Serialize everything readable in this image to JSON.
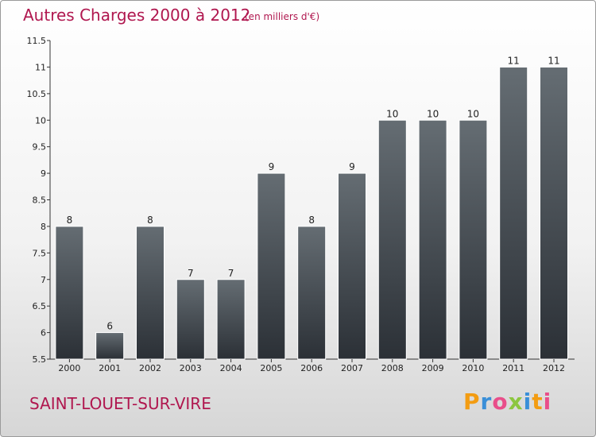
{
  "header": {
    "title": "Autres Charges 2000 à 2012",
    "subtitle": "(en milliers d'€)"
  },
  "footer": {
    "commune": "SAINT-LOUET-SUR-VIRE",
    "logo_letters": [
      "P",
      "r",
      "o",
      "x",
      "i",
      "t",
      "i"
    ],
    "logo_colors": [
      "#f39c12",
      "#3a8fd8",
      "#e94e8a",
      "#8cc63f",
      "#3a8fd8",
      "#f39c12",
      "#e94e8a"
    ]
  },
  "chart_data": {
    "type": "bar",
    "title": "Autres Charges 2000 à 2012",
    "subtitle": "(en milliers d'€)",
    "categories": [
      "2000",
      "2001",
      "2002",
      "2003",
      "2004",
      "2005",
      "2006",
      "2007",
      "2008",
      "2009",
      "2010",
      "2011",
      "2012"
    ],
    "values": [
      8,
      6,
      8,
      7,
      7,
      9,
      8,
      9,
      10,
      10,
      10,
      11,
      11
    ],
    "value_labels": [
      "8",
      "6",
      "8",
      "7",
      "7",
      "9",
      "8",
      "9",
      "10",
      "10",
      "10",
      "11",
      "11"
    ],
    "ylim": [
      5.5,
      11.5
    ],
    "yticks": [
      5.5,
      6,
      6.5,
      7,
      7.5,
      8,
      8.5,
      9,
      9.5,
      10,
      10.5,
      11,
      11.5
    ],
    "ytick_labels": [
      "5.5",
      "6",
      "6.5",
      "7",
      "7.5",
      "8",
      "8.5",
      "9",
      "9.5",
      "10",
      "10.5",
      "11",
      "11.5"
    ],
    "grid": false,
    "colors": {
      "bar_top": "#656d73",
      "bar_bottom": "#2b3036",
      "text": "#222222",
      "axis": "#333333"
    }
  }
}
